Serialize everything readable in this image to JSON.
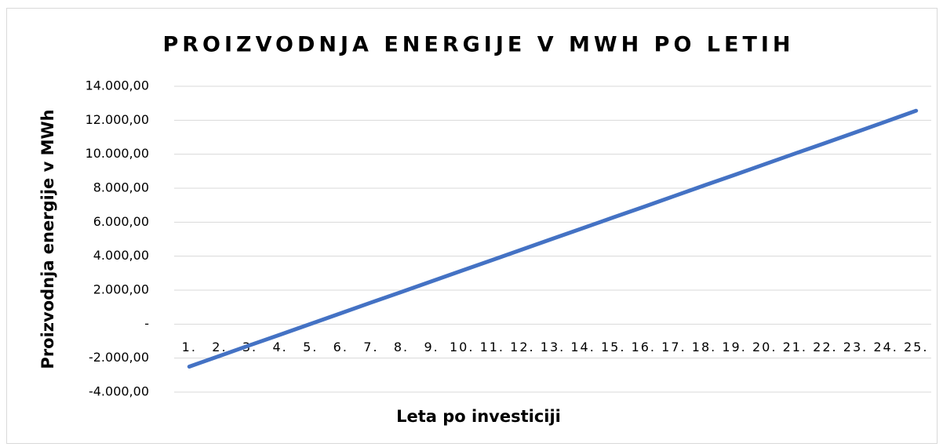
{
  "chart_data": {
    "type": "line",
    "title": "PROIZVODNJA ENERGIJE V MWH PO LETIH",
    "x_label": "Leta po investiciji",
    "y_label": "Proizvodnja energije v MWh",
    "categories": [
      "1.",
      "2.",
      "3.",
      "4.",
      "5.",
      "6.",
      "7.",
      "8.",
      "9.",
      "10.",
      "11.",
      "12.",
      "13.",
      "14.",
      "15.",
      "16.",
      "17.",
      "18.",
      "19.",
      "20.",
      "21.",
      "22.",
      "23.",
      "24.",
      "25."
    ],
    "series": [
      {
        "name": "Proizvodnja energije",
        "color": "#4472c4",
        "values": [
          -2500,
          -1870,
          -1240,
          -620,
          10,
          640,
          1270,
          1890,
          2520,
          3150,
          3770,
          4400,
          5030,
          5650,
          6280,
          6900,
          7530,
          8160,
          8780,
          9410,
          10040,
          10660,
          11290,
          11920,
          12560
        ]
      }
    ],
    "ylim": [
      -4000,
      14000
    ],
    "yticks": [
      {
        "value": -4000,
        "label": "-4.000,00"
      },
      {
        "value": -2000,
        "label": "-2.000,00"
      },
      {
        "value": 0,
        "label": "-"
      },
      {
        "value": 2000,
        "label": "2.000,00"
      },
      {
        "value": 4000,
        "label": "4.000,00"
      },
      {
        "value": 6000,
        "label": "6.000,00"
      },
      {
        "value": 8000,
        "label": "8.000,00"
      },
      {
        "value": 10000,
        "label": "10.000,00"
      },
      {
        "value": 12000,
        "label": "12.000,00"
      },
      {
        "value": 14000,
        "label": "14.000,00"
      }
    ],
    "grid": true
  }
}
